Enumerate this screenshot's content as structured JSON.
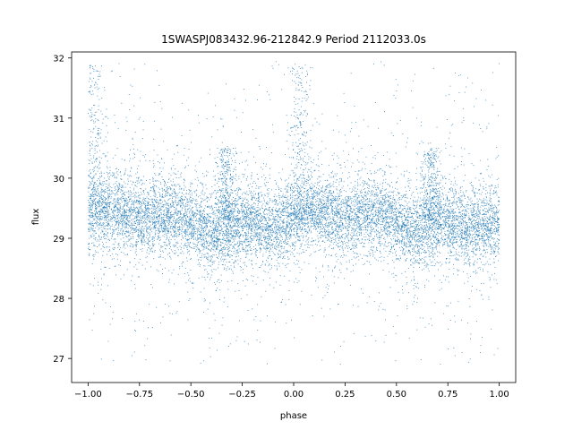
{
  "chart_data": {
    "type": "scatter",
    "title": "1SWASPJ083432.96-212842.9 Period 2112033.0s",
    "xlabel": "phase",
    "ylabel": "flux",
    "xlim": [
      -1.08,
      1.08
    ],
    "ylim": [
      26.6,
      32.1
    ],
    "xticks": [
      -1.0,
      -0.75,
      -0.5,
      -0.25,
      0.0,
      0.25,
      0.5,
      0.75,
      1.0
    ],
    "xtick_labels": [
      "−1.00",
      "−0.75",
      "−0.50",
      "−0.25",
      "0.00",
      "0.25",
      "0.50",
      "0.75",
      "1.00"
    ],
    "yticks": [
      27,
      28,
      29,
      30,
      31,
      32
    ],
    "ytick_labels": [
      "27",
      "28",
      "29",
      "30",
      "31",
      "32"
    ],
    "grid": false,
    "point_color": "#1f77b4",
    "series": [
      {
        "x_range": [
          -1.0,
          1.0
        ],
        "baseline_flux": 29.3,
        "band_low": 28.7,
        "band_high": 29.9,
        "outlier_range": [
          26.9,
          31.95
        ],
        "phase_bumps": [
          {
            "phase": -0.97,
            "peak_flux": 31.9
          },
          {
            "phase": 0.03,
            "peak_flux": 31.9
          },
          {
            "phase": -0.33,
            "peak_flux": 30.5
          },
          {
            "phase": 0.67,
            "peak_flux": 30.5
          }
        ]
      }
    ]
  }
}
